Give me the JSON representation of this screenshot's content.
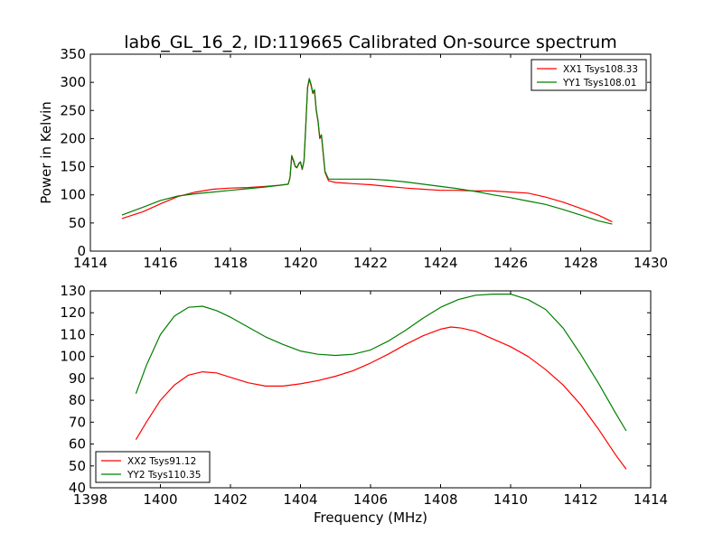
{
  "figure": {
    "title": "lab6_GL_16_2, ID:119665 Calibrated On-source spectrum"
  },
  "colors": {
    "red": "#ff0000",
    "green": "#007f00",
    "axes": "#000000"
  },
  "chart_data": [
    {
      "type": "line",
      "xlabel": "",
      "ylabel": "Power in Kelvin",
      "xlim": [
        1414,
        1430
      ],
      "ylim": [
        0,
        350
      ],
      "xticks": [
        "1414",
        "1416",
        "1418",
        "1420",
        "1422",
        "1424",
        "1426",
        "1428",
        "1430"
      ],
      "yticks": [
        "0",
        "50",
        "100",
        "150",
        "200",
        "250",
        "300",
        "350"
      ],
      "legend_position": "top-right",
      "grid": false,
      "series": [
        {
          "name": "XX1 Tsys108.33",
          "color": "#ff0000",
          "x": [
            1414.9,
            1415.5,
            1416.0,
            1416.5,
            1417.0,
            1417.5,
            1418.0,
            1418.5,
            1419.0,
            1419.4,
            1419.65,
            1419.7,
            1419.75,
            1419.8,
            1419.85,
            1419.9,
            1419.95,
            1420.0,
            1420.05,
            1420.1,
            1420.15,
            1420.2,
            1420.25,
            1420.3,
            1420.35,
            1420.4,
            1420.45,
            1420.5,
            1420.55,
            1420.6,
            1420.7,
            1420.8,
            1421.0,
            1421.5,
            1422.0,
            1422.5,
            1423.0,
            1423.5,
            1424.0,
            1424.5,
            1425.0,
            1425.5,
            1426.0,
            1426.5,
            1427.0,
            1427.5,
            1428.0,
            1428.5,
            1428.9
          ],
          "values": [
            58,
            70,
            84,
            97,
            105,
            110,
            112,
            113,
            115,
            117,
            119,
            130,
            168,
            160,
            150,
            148,
            155,
            158,
            145,
            160,
            220,
            290,
            305,
            295,
            280,
            285,
            250,
            230,
            200,
            205,
            140,
            125,
            122,
            120,
            118,
            115,
            112,
            110,
            108,
            108,
            107,
            107,
            105,
            103,
            96,
            87,
            76,
            64,
            52
          ]
        },
        {
          "name": "YY1 Tsys108.01",
          "color": "#007f00",
          "x": [
            1414.9,
            1415.5,
            1416.0,
            1416.5,
            1417.0,
            1417.5,
            1418.0,
            1418.5,
            1419.0,
            1419.4,
            1419.65,
            1419.7,
            1419.75,
            1419.8,
            1419.85,
            1419.9,
            1419.95,
            1420.0,
            1420.05,
            1420.1,
            1420.15,
            1420.2,
            1420.25,
            1420.3,
            1420.35,
            1420.4,
            1420.45,
            1420.5,
            1420.55,
            1420.6,
            1420.7,
            1420.8,
            1421.0,
            1421.5,
            1422.0,
            1422.5,
            1423.0,
            1423.5,
            1424.0,
            1424.5,
            1425.0,
            1425.5,
            1426.0,
            1426.5,
            1427.0,
            1427.5,
            1428.0,
            1428.5,
            1428.9
          ],
          "values": [
            64,
            78,
            90,
            98,
            102,
            105,
            108,
            111,
            114,
            117,
            119,
            131,
            170,
            162,
            151,
            149,
            156,
            159,
            146,
            161,
            222,
            291,
            307,
            297,
            282,
            287,
            252,
            232,
            202,
            207,
            142,
            128,
            128,
            128,
            128,
            126,
            123,
            119,
            115,
            111,
            106,
            100,
            95,
            89,
            83,
            74,
            64,
            54,
            48
          ]
        }
      ]
    },
    {
      "type": "line",
      "xlabel": "Frequency (MHz)",
      "ylabel": "",
      "xlim": [
        1398,
        1414
      ],
      "ylim": [
        40,
        130
      ],
      "xticks": [
        "1398",
        "1400",
        "1402",
        "1404",
        "1406",
        "1408",
        "1410",
        "1412",
        "1414"
      ],
      "yticks": [
        "40",
        "50",
        "60",
        "70",
        "80",
        "90",
        "100",
        "110",
        "120",
        "130"
      ],
      "legend_position": "bottom-left",
      "grid": false,
      "series": [
        {
          "name": "XX2 Tsys91.12",
          "color": "#ff0000",
          "x": [
            1399.3,
            1399.6,
            1400.0,
            1400.4,
            1400.8,
            1401.2,
            1401.6,
            1402.0,
            1402.5,
            1403.0,
            1403.5,
            1404.0,
            1404.5,
            1405.0,
            1405.5,
            1406.0,
            1406.5,
            1407.0,
            1407.5,
            1408.0,
            1408.3,
            1408.6,
            1409.0,
            1409.5,
            1410.0,
            1410.5,
            1411.0,
            1411.5,
            1412.0,
            1412.5,
            1413.0,
            1413.3
          ],
          "values": [
            62,
            70,
            80,
            87,
            91.5,
            93,
            92.5,
            90.5,
            88,
            86.5,
            86.5,
            87.5,
            89,
            91,
            93.5,
            97,
            101,
            105.5,
            109.5,
            112.5,
            113.5,
            113,
            111.5,
            108,
            104.5,
            100,
            94,
            87,
            78,
            67,
            55,
            48.5
          ]
        },
        {
          "name": "YY2 Tsys110.35",
          "color": "#007f00",
          "x": [
            1399.3,
            1399.6,
            1400.0,
            1400.4,
            1400.8,
            1401.2,
            1401.6,
            1402.0,
            1402.5,
            1403.0,
            1403.5,
            1404.0,
            1404.5,
            1405.0,
            1405.5,
            1406.0,
            1406.5,
            1407.0,
            1407.5,
            1408.0,
            1408.5,
            1409.0,
            1409.5,
            1410.0,
            1410.5,
            1411.0,
            1411.5,
            1412.0,
            1412.5,
            1413.0,
            1413.3
          ],
          "values": [
            83,
            96,
            110,
            118.5,
            122.5,
            123,
            121,
            118,
            113.5,
            109,
            105.5,
            102.5,
            101,
            100.5,
            101,
            103,
            107,
            112,
            117.5,
            122.5,
            126,
            128,
            128.5,
            128.5,
            126,
            121.5,
            113,
            101,
            88,
            74,
            66
          ]
        }
      ]
    }
  ]
}
